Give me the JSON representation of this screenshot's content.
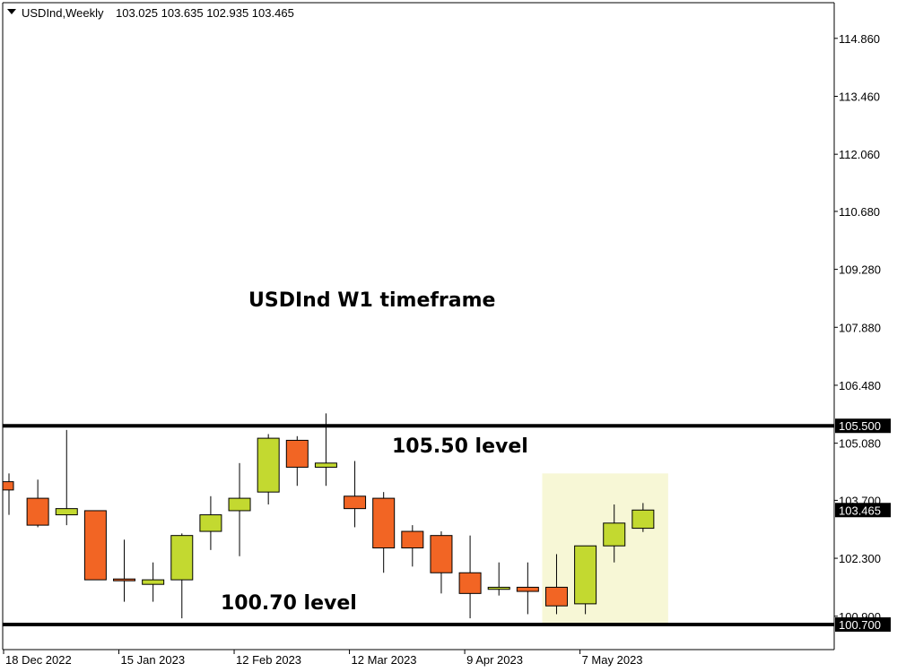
{
  "header": {
    "symbol": "USDInd,Weekly",
    "ohlc": "103.025 103.635 102.935 103.465",
    "menu_icon": "triangle-down-icon"
  },
  "chart_data": {
    "type": "candlestick",
    "title": "USDInd W1 timeframe",
    "ylim": [
      99.2,
      116.0
    ],
    "y_ticks": [
      100.9,
      102.3,
      103.7,
      105.08,
      106.48,
      107.88,
      109.28,
      110.68,
      112.06,
      113.46,
      114.86
    ],
    "y_tick_labels": [
      "100.900",
      "102.300",
      "103.700",
      "105.080",
      "106.480",
      "107.880",
      "109.280",
      "110.680",
      "112.060",
      "113.460",
      "114.860"
    ],
    "x_tick_labels": [
      {
        "index": 0,
        "label": "18 Dec 2022"
      },
      {
        "index": 4,
        "label": "15 Jan 2023"
      },
      {
        "index": 8,
        "label": "12 Feb 2023"
      },
      {
        "index": 12,
        "label": "12 Mar 2023"
      },
      {
        "index": 16,
        "label": "9 Apr 2023"
      },
      {
        "index": 20,
        "label": "7 May 2023"
      }
    ],
    "candles": [
      {
        "open": 104.15,
        "high": 104.35,
        "low": 103.35,
        "close": 103.95
      },
      {
        "open": 103.75,
        "high": 104.2,
        "low": 103.05,
        "close": 103.1
      },
      {
        "open": 103.35,
        "high": 105.4,
        "low": 103.1,
        "close": 103.5
      },
      {
        "open": 103.45,
        "high": 103.45,
        "low": 101.9,
        "close": 101.78
      },
      {
        "open": 101.8,
        "high": 102.75,
        "low": 101.25,
        "close": 101.78
      },
      {
        "open": 101.67,
        "high": 102.2,
        "low": 101.25,
        "close": 101.78
      },
      {
        "open": 101.78,
        "high": 102.9,
        "low": 100.85,
        "close": 102.85
      },
      {
        "open": 102.95,
        "high": 103.8,
        "low": 102.5,
        "close": 103.35
      },
      {
        "open": 103.45,
        "high": 104.6,
        "low": 102.35,
        "close": 103.75
      },
      {
        "open": 103.9,
        "high": 105.3,
        "low": 103.6,
        "close": 105.2
      },
      {
        "open": 105.15,
        "high": 105.25,
        "low": 104.05,
        "close": 104.5
      },
      {
        "open": 104.5,
        "high": 105.8,
        "low": 104.05,
        "close": 104.6
      },
      {
        "open": 103.8,
        "high": 104.65,
        "low": 103.05,
        "close": 103.5
      },
      {
        "open": 103.75,
        "high": 103.9,
        "low": 101.95,
        "close": 102.55
      },
      {
        "open": 102.95,
        "high": 103.1,
        "low": 102.1,
        "close": 102.55
      },
      {
        "open": 102.85,
        "high": 102.95,
        "low": 101.45,
        "close": 101.95
      },
      {
        "open": 101.95,
        "high": 102.85,
        "low": 100.85,
        "close": 101.45
      },
      {
        "open": 101.55,
        "high": 102.2,
        "low": 101.4,
        "close": 101.6
      },
      {
        "open": 101.6,
        "high": 102.2,
        "low": 100.95,
        "close": 101.5
      },
      {
        "open": 101.6,
        "high": 102.4,
        "low": 100.95,
        "close": 101.15
      },
      {
        "open": 101.2,
        "high": 102.6,
        "low": 100.95,
        "close": 102.6
      },
      {
        "open": 102.6,
        "high": 103.6,
        "low": 102.2,
        "close": 103.15
      },
      {
        "open": 103.025,
        "high": 103.635,
        "low": 102.935,
        "close": 103.465
      }
    ],
    "levels": [
      {
        "value": 105.5,
        "label": "105.500",
        "annotation": "105.50 level"
      },
      {
        "value": 100.7,
        "label": "100.700",
        "annotation": "100.70 level"
      }
    ],
    "current_price_label": "103.465",
    "current_price": 103.465,
    "highlight_region": {
      "start_index": 19,
      "end_index": 22,
      "low": 100.7,
      "high": 104.35,
      "color": "#f7f7d6"
    },
    "colors": {
      "bull": "#c3d930",
      "bear": "#f26524",
      "line": "#000000",
      "axis_label_bg": "#000000",
      "axis_label_text": "#ffffff"
    }
  }
}
